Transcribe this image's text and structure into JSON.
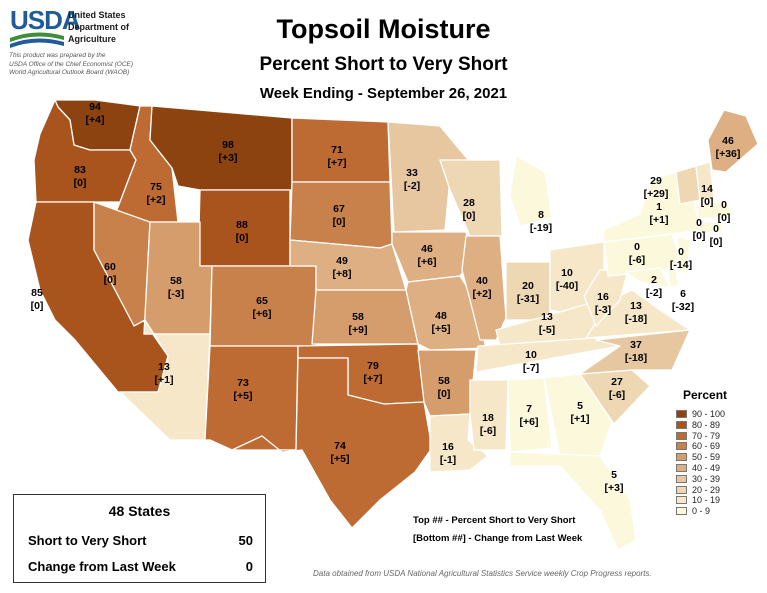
{
  "header": {
    "agency_abbr": "USDA",
    "department_lines": [
      "United States",
      "Department of",
      "Agriculture"
    ],
    "prepared_by": [
      "This product was prepared by the",
      "USDA Office of the Chief Economist (OCE)",
      "World Agricultural Outlook Board (WAOB)"
    ],
    "title": "Topsoil Moisture",
    "subtitle": "Percent Short to Very Short",
    "week": "Week Ending - September 26, 2021"
  },
  "colors": {
    "90-100": "#8c4310",
    "80-89": "#a9541c",
    "70-79": "#bd6a33",
    "60-69": "#c9814c",
    "50-59": "#d59c6c",
    "40-49": "#ddaf82",
    "30-39": "#e6c79f",
    "20-29": "#eed8b4",
    "10-19": "#f5e7c7",
    "0-9": "#fcf8dc",
    "state_border": "#ffffff",
    "usda_blue": "#1f5c99",
    "usda_green": "#3d8f3a"
  },
  "legend": {
    "title": "Percent",
    "ranges": [
      "90 - 100",
      "80 - 89",
      "70 - 79",
      "60 - 69",
      "50 - 59",
      "40 - 49",
      "30 - 39",
      "20 - 29",
      "10 - 19",
      "0 - 9"
    ]
  },
  "states": [
    {
      "id": "WA",
      "value": "94",
      "change": "[+4]"
    },
    {
      "id": "OR",
      "value": "83",
      "change": "[0]"
    },
    {
      "id": "CA",
      "value": "85",
      "change": "[0]"
    },
    {
      "id": "ID",
      "value": "75",
      "change": "[+2]"
    },
    {
      "id": "NV",
      "value": "60",
      "change": "[0]"
    },
    {
      "id": "MT",
      "value": "98",
      "change": "[+3]"
    },
    {
      "id": "WY",
      "value": "88",
      "change": "[0]"
    },
    {
      "id": "UT",
      "value": "58",
      "change": "[-3]"
    },
    {
      "id": "AZ",
      "value": "13",
      "change": "[+1]"
    },
    {
      "id": "CO",
      "value": "65",
      "change": "[+6]"
    },
    {
      "id": "NM",
      "value": "73",
      "change": "[+5]"
    },
    {
      "id": "ND",
      "value": "71",
      "change": "[+7]"
    },
    {
      "id": "SD",
      "value": "67",
      "change": "[0]"
    },
    {
      "id": "NE",
      "value": "49",
      "change": "[+8]"
    },
    {
      "id": "KS",
      "value": "58",
      "change": "[+9]"
    },
    {
      "id": "OK",
      "value": "79",
      "change": "[+7]"
    },
    {
      "id": "TX",
      "value": "74",
      "change": "[+5]"
    },
    {
      "id": "MN",
      "value": "33",
      "change": "[-2]"
    },
    {
      "id": "IA",
      "value": "46",
      "change": "[+6]"
    },
    {
      "id": "MO",
      "value": "48",
      "change": "[+5]"
    },
    {
      "id": "AR",
      "value": "58",
      "change": "[0]"
    },
    {
      "id": "LA",
      "value": "16",
      "change": "[-1]"
    },
    {
      "id": "WI",
      "value": "28",
      "change": "[0]"
    },
    {
      "id": "IL",
      "value": "40",
      "change": "[+2]"
    },
    {
      "id": "MI",
      "value": "8",
      "change": "[-19]"
    },
    {
      "id": "IN",
      "value": "20",
      "change": "[-31]"
    },
    {
      "id": "OH",
      "value": "10",
      "change": "[-40]"
    },
    {
      "id": "KY",
      "value": "13",
      "change": "[-5]"
    },
    {
      "id": "TN",
      "value": "10",
      "change": "[-7]"
    },
    {
      "id": "MS",
      "value": "18",
      "change": "[-6]"
    },
    {
      "id": "AL",
      "value": "7",
      "change": "[+6]"
    },
    {
      "id": "GA",
      "value": "5",
      "change": "[+1]"
    },
    {
      "id": "FL",
      "value": "5",
      "change": "[+3]"
    },
    {
      "id": "SC",
      "value": "27",
      "change": "[-6]"
    },
    {
      "id": "NC",
      "value": "37",
      "change": "[-18]"
    },
    {
      "id": "VA",
      "value": "13",
      "change": "[-18]"
    },
    {
      "id": "WV",
      "value": "16",
      "change": "[-3]"
    },
    {
      "id": "PA",
      "value": "0",
      "change": "[-6]"
    },
    {
      "id": "NY",
      "value": "1",
      "change": "[+1]"
    },
    {
      "id": "MD",
      "value": "2",
      "change": "[-2]"
    },
    {
      "id": "DE",
      "value": "6",
      "change": "[-32]"
    },
    {
      "id": "NJ",
      "value": "0",
      "change": "[-14]"
    },
    {
      "id": "CT",
      "value": "0",
      "change": "[0]"
    },
    {
      "id": "RI",
      "value": "0",
      "change": "[0]"
    },
    {
      "id": "MA",
      "value": "0",
      "change": "[0]"
    },
    {
      "id": "VT",
      "value": "29",
      "change": "[+29]"
    },
    {
      "id": "NH",
      "value": "14",
      "change": "[0]"
    },
    {
      "id": "ME",
      "value": "46",
      "change": "[+36]"
    }
  ],
  "summary": {
    "title": "48 States",
    "rows": [
      {
        "label": "Short to Very Short",
        "value": "50"
      },
      {
        "label": "Change from Last Week",
        "value": "0"
      }
    ]
  },
  "key": {
    "top": "Top ## - Percent Short to Very Short",
    "bottom": "[Bottom ##] - Change from Last Week"
  },
  "source": "Data obtained from USDA National Agricultural Statistics Service weekly Crop Progress reports."
}
